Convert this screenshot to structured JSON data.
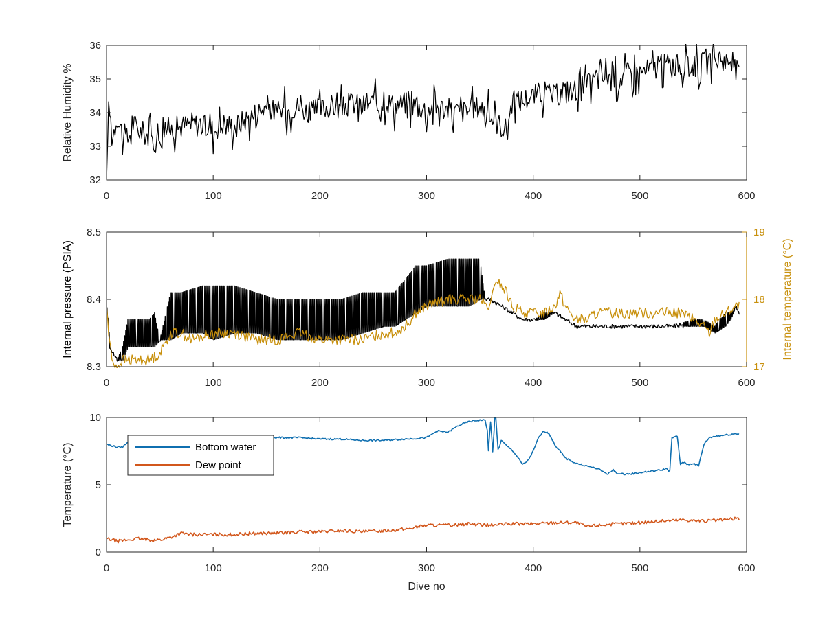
{
  "chart_data": [
    {
      "type": "line",
      "xlim": [
        0,
        600
      ],
      "ylim": [
        32,
        36
      ],
      "xticks": [
        "0",
        "100",
        "200",
        "300",
        "400",
        "500",
        "600"
      ],
      "yticks": [
        "32",
        "33",
        "34",
        "35",
        "36"
      ],
      "ylabel": "Relative Humidity %",
      "grid": false,
      "series": [
        {
          "color": "#000000",
          "x": [
            0,
            1,
            3,
            5,
            8,
            10,
            15,
            20,
            25,
            30,
            35,
            40,
            45,
            50,
            55,
            60,
            70,
            80,
            90,
            100,
            110,
            120,
            130,
            140,
            150,
            160,
            170,
            180,
            190,
            200,
            210,
            220,
            230,
            240,
            250,
            260,
            270,
            280,
            290,
            300,
            310,
            320,
            330,
            340,
            350,
            360,
            370,
            375,
            380,
            390,
            400,
            410,
            420,
            430,
            440,
            450,
            460,
            470,
            480,
            490,
            500,
            510,
            520,
            530,
            535,
            540,
            550,
            560,
            570,
            575,
            580,
            585,
            590,
            593
          ],
          "y": [
            32.0,
            33.4,
            34.0,
            33.3,
            33.6,
            33.9,
            33.4,
            33.2,
            33.7,
            33.5,
            33.4,
            33.3,
            33.1,
            33.3,
            33.6,
            33.5,
            33.6,
            33.7,
            33.6,
            33.5,
            33.7,
            33.6,
            33.8,
            34.0,
            34.2,
            34.0,
            34.1,
            34.2,
            34.0,
            34.1,
            34.2,
            34.1,
            34.3,
            34.2,
            34.3,
            34.4,
            34.2,
            34.3,
            34.2,
            34.1,
            34.2,
            34.1,
            34.0,
            34.1,
            34.2,
            33.9,
            33.6,
            33.5,
            34.3,
            34.4,
            34.5,
            34.6,
            34.5,
            34.6,
            34.7,
            34.8,
            35.0,
            35.1,
            35.0,
            35.2,
            35.2,
            35.3,
            35.4,
            35.5,
            35.4,
            35.3,
            35.4,
            35.5,
            35.4,
            35.7,
            35.5,
            35.6,
            35.3,
            35.1
          ],
          "jitter": 0.35,
          "style": "sawtooth"
        }
      ]
    },
    {
      "type": "line",
      "xlim": [
        0,
        600
      ],
      "ylim": [
        8.3,
        8.5
      ],
      "y2lim": [
        17,
        19
      ],
      "xticks": [
        "0",
        "100",
        "200",
        "300",
        "400",
        "500",
        "600"
      ],
      "yticks": [
        "8.3",
        "8.4",
        "8.5"
      ],
      "y2ticks": [
        "17",
        "18",
        "19"
      ],
      "ylabel": "Internal pressure (PSIA)",
      "y2label": "Internal temperature (°C)",
      "grid": false,
      "series": [
        {
          "color": "#000000",
          "axis": "left",
          "x": [
            0,
            3,
            6,
            10,
            15,
            20,
            30,
            40,
            45,
            50,
            60,
            70,
            90,
            100,
            120,
            140,
            160,
            180,
            200,
            220,
            240,
            260,
            270,
            280,
            290,
            300,
            320,
            340,
            350,
            355,
            360,
            370,
            380,
            390,
            400,
            410,
            420,
            430,
            440,
            450,
            470,
            490,
            510,
            530,
            550,
            560,
            570,
            580,
            585,
            590,
            593
          ],
          "lo": [
            8.39,
            8.33,
            8.32,
            8.31,
            8.31,
            8.33,
            8.33,
            8.33,
            8.33,
            8.34,
            8.34,
            8.35,
            8.35,
            8.34,
            8.35,
            8.35,
            8.34,
            8.34,
            8.34,
            8.34,
            8.35,
            8.36,
            8.36,
            8.37,
            8.38,
            8.39,
            8.39,
            8.39,
            8.4,
            8.4,
            8.4,
            8.39,
            8.38,
            8.37,
            8.37,
            8.37,
            8.38,
            8.37,
            8.36,
            8.36,
            8.36,
            8.36,
            8.36,
            8.36,
            8.36,
            8.36,
            8.35,
            8.36,
            8.37,
            8.39,
            8.38
          ],
          "hi": [
            8.39,
            8.33,
            8.32,
            8.31,
            8.33,
            8.37,
            8.37,
            8.37,
            8.38,
            8.34,
            8.41,
            8.41,
            8.42,
            8.42,
            8.42,
            8.41,
            8.4,
            8.4,
            8.4,
            8.4,
            8.41,
            8.41,
            8.41,
            8.43,
            8.45,
            8.45,
            8.46,
            8.46,
            8.46,
            8.4,
            8.4,
            8.39,
            8.38,
            8.37,
            8.37,
            8.38,
            8.38,
            8.37,
            8.36,
            8.36,
            8.36,
            8.36,
            8.36,
            8.36,
            8.37,
            8.37,
            8.36,
            8.38,
            8.38,
            8.39,
            8.38
          ],
          "style": "band"
        },
        {
          "color": "#c8900c",
          "axis": "right",
          "x": [
            0,
            2,
            5,
            10,
            15,
            20,
            30,
            40,
            50,
            60,
            70,
            80,
            100,
            120,
            140,
            160,
            180,
            200,
            220,
            240,
            260,
            270,
            280,
            290,
            300,
            320,
            340,
            350,
            355,
            360,
            365,
            370,
            375,
            380,
            390,
            400,
            410,
            420,
            425,
            430,
            440,
            450,
            460,
            480,
            500,
            520,
            540,
            560,
            565,
            570,
            580,
            590,
            593
          ],
          "y": [
            17.9,
            17.5,
            17.1,
            17.0,
            17.1,
            17.1,
            17.1,
            17.1,
            17.2,
            17.5,
            17.5,
            17.4,
            17.5,
            17.5,
            17.4,
            17.4,
            17.5,
            17.4,
            17.4,
            17.4,
            17.5,
            17.5,
            17.6,
            17.8,
            17.9,
            18.0,
            18.0,
            18.0,
            17.9,
            17.9,
            18.3,
            18.2,
            18.1,
            17.9,
            17.8,
            17.8,
            17.8,
            17.9,
            18.1,
            17.9,
            17.7,
            17.7,
            17.8,
            17.8,
            17.8,
            17.8,
            17.8,
            17.6,
            17.5,
            17.7,
            17.8,
            17.9,
            17.9
          ],
          "jitter": 0.08,
          "style": "noisy"
        }
      ]
    },
    {
      "type": "line",
      "xlim": [
        0,
        600
      ],
      "ylim": [
        0,
        10
      ],
      "xticks": [
        "0",
        "100",
        "200",
        "300",
        "400",
        "500",
        "600"
      ],
      "yticks": [
        "0",
        "5",
        "10"
      ],
      "xlabel": "Dive no",
      "ylabel": "Temperature (°C)",
      "legend_position": "top-left",
      "grid": false,
      "series": [
        {
          "name": "Bottom water",
          "color": "#0f6fb0",
          "x": [
            0,
            5,
            10,
            15,
            20,
            25,
            30,
            40,
            50,
            60,
            70,
            80,
            90,
            100,
            120,
            140,
            160,
            180,
            200,
            220,
            240,
            260,
            280,
            300,
            310,
            320,
            330,
            340,
            350,
            355,
            357,
            358,
            360,
            362,
            364,
            365,
            367,
            368,
            370,
            375,
            380,
            385,
            390,
            395,
            400,
            405,
            410,
            415,
            420,
            430,
            440,
            450,
            460,
            470,
            475,
            480,
            490,
            500,
            510,
            520,
            525,
            528,
            530,
            535,
            538,
            540,
            545,
            550,
            555,
            560,
            565,
            570,
            580,
            590,
            593
          ],
          "y": [
            8.0,
            7.9,
            7.8,
            7.8,
            8.2,
            8.4,
            8.5,
            8.6,
            8.6,
            8.5,
            8.6,
            8.6,
            8.6,
            8.5,
            8.5,
            8.6,
            8.5,
            8.5,
            8.4,
            8.4,
            8.3,
            8.3,
            8.4,
            8.5,
            9.0,
            8.9,
            9.4,
            9.7,
            9.8,
            9.8,
            9.0,
            7.5,
            9.7,
            7.5,
            9.9,
            9.9,
            7.6,
            7.8,
            8.3,
            7.9,
            7.6,
            7.1,
            6.5,
            6.8,
            7.5,
            8.5,
            9.0,
            8.8,
            8.0,
            7.0,
            6.6,
            6.4,
            6.2,
            5.8,
            6.1,
            5.8,
            5.8,
            5.9,
            6.0,
            6.1,
            6.2,
            6.0,
            8.5,
            8.6,
            6.5,
            6.7,
            6.5,
            6.6,
            6.4,
            8.0,
            8.5,
            8.6,
            8.7,
            8.8,
            8.8
          ],
          "jitter": 0.06,
          "style": "noisy"
        },
        {
          "name": "Dew point",
          "color": "#d2571c",
          "x": [
            0,
            10,
            20,
            30,
            40,
            50,
            60,
            70,
            80,
            100,
            120,
            140,
            160,
            180,
            200,
            220,
            240,
            260,
            280,
            300,
            320,
            340,
            360,
            380,
            400,
            420,
            440,
            450,
            460,
            480,
            500,
            520,
            540,
            560,
            580,
            593
          ],
          "y": [
            1.0,
            0.8,
            0.9,
            1.0,
            0.9,
            0.9,
            1.1,
            1.4,
            1.3,
            1.3,
            1.3,
            1.4,
            1.4,
            1.5,
            1.5,
            1.6,
            1.5,
            1.6,
            1.7,
            2.0,
            2.0,
            2.1,
            2.0,
            2.1,
            2.1,
            2.2,
            2.2,
            1.9,
            2.0,
            2.1,
            2.2,
            2.3,
            2.4,
            2.3,
            2.4,
            2.5
          ],
          "jitter": 0.12,
          "style": "noisy"
        }
      ]
    }
  ]
}
